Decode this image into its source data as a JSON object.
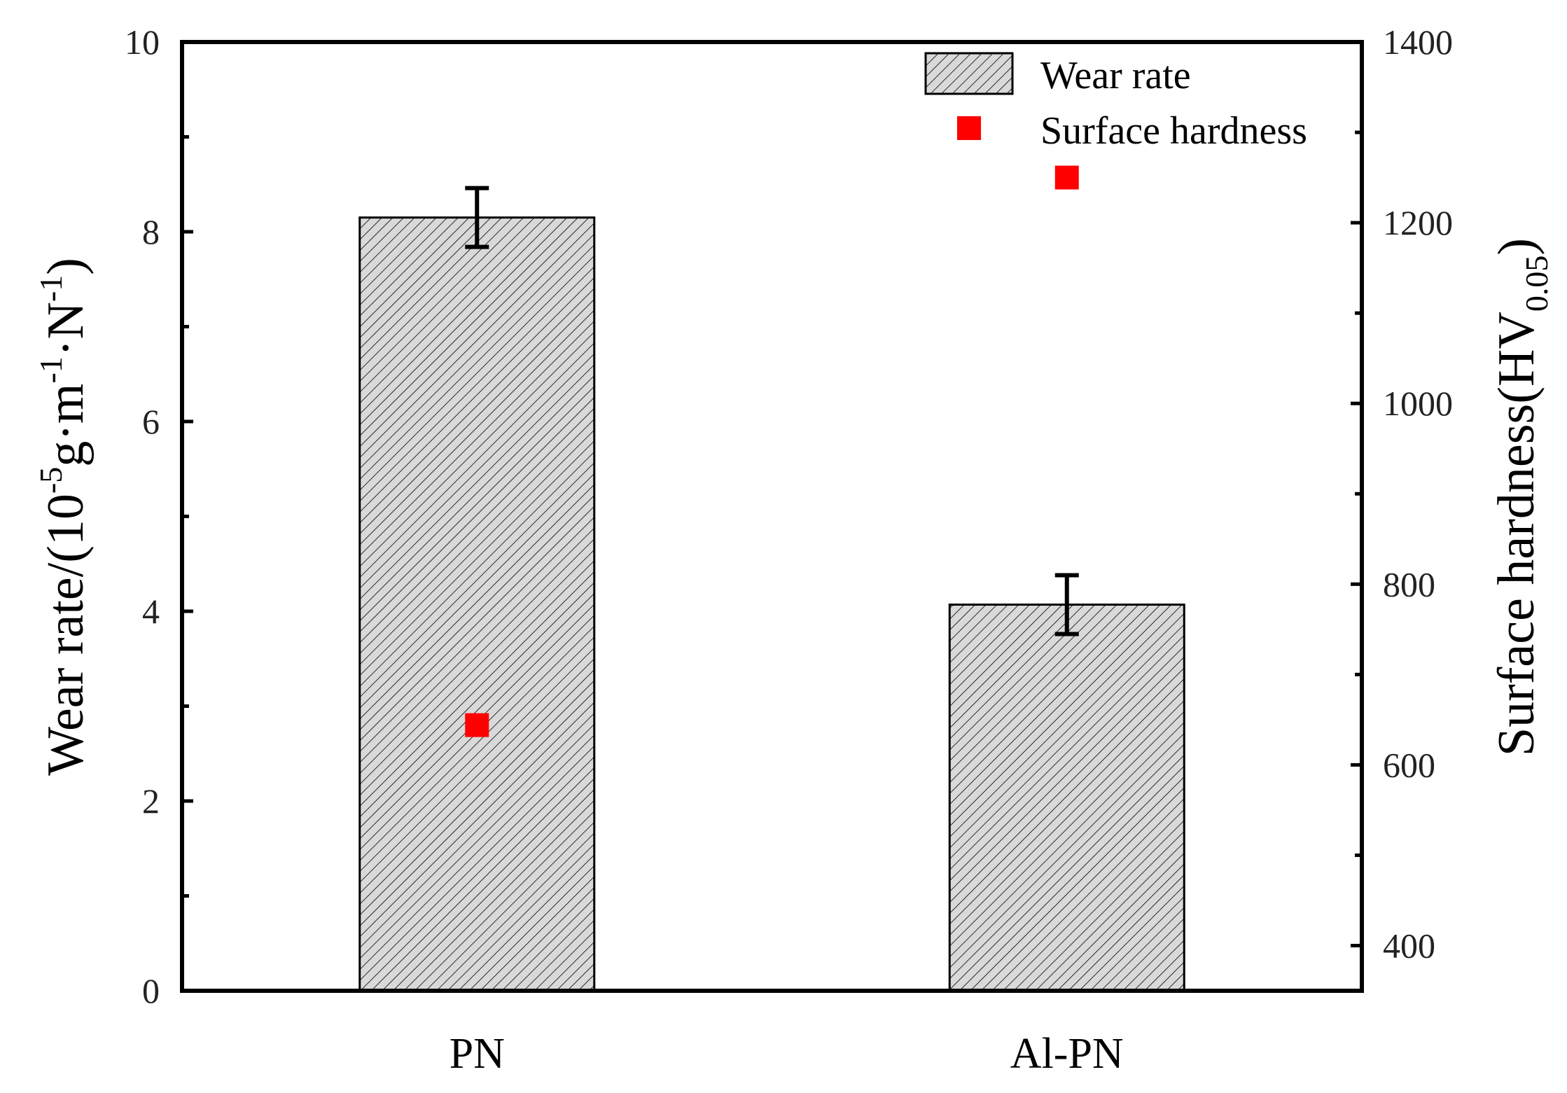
{
  "chart_data": {
    "type": "bar",
    "categories": [
      "PN",
      "Al-PN"
    ],
    "series": [
      {
        "name": "Wear rate",
        "axis": "left",
        "kind": "bar",
        "values": [
          8.15,
          4.07
        ],
        "error": [
          0.31,
          0.31
        ],
        "fill": "#d9d9d9",
        "pattern": "diagonal-hatch"
      },
      {
        "name": "Surface hardness",
        "axis": "right",
        "kind": "scatter",
        "values": [
          644,
          1250
        ],
        "color": "#ff0000",
        "marker": "square"
      }
    ],
    "y_left": {
      "label_main": "Wear rate/(10",
      "label_sup1": "-5",
      "label_mid1": "g·m",
      "label_sup2": "-1",
      "label_mid2": "·N",
      "label_sup3": "-1",
      "label_end": ")",
      "ylim": [
        0,
        10
      ],
      "ticks": [
        "0",
        "2",
        "4",
        "6",
        "8",
        "10"
      ]
    },
    "y_right": {
      "label_main": "Surface hardness(HV",
      "label_sub": "0.05",
      "label_end": ")",
      "ylim": [
        350,
        1400
      ],
      "ticks": [
        "400",
        "600",
        "800",
        "1000",
        "1200",
        "1400"
      ]
    },
    "legend": {
      "placement": "top-right",
      "items": [
        "Wear rate",
        "Surface hardness"
      ]
    }
  }
}
